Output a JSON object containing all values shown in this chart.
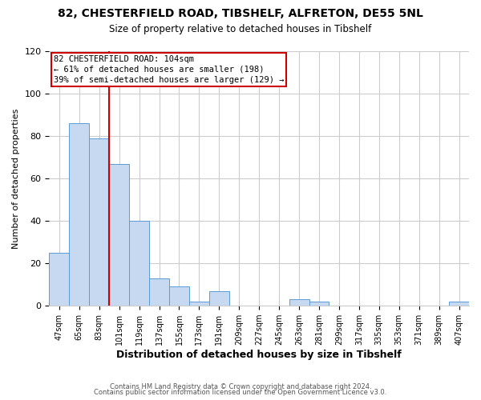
{
  "title1": "82, CHESTERFIELD ROAD, TIBSHELF, ALFRETON, DE55 5NL",
  "title2": "Size of property relative to detached houses in Tibshelf",
  "xlabel": "Distribution of detached houses by size in Tibshelf",
  "ylabel": "Number of detached properties",
  "bar_labels": [
    "47sqm",
    "65sqm",
    "83sqm",
    "101sqm",
    "119sqm",
    "137sqm",
    "155sqm",
    "173sqm",
    "191sqm",
    "209sqm",
    "227sqm",
    "245sqm",
    "263sqm",
    "281sqm",
    "299sqm",
    "317sqm",
    "335sqm",
    "353sqm",
    "371sqm",
    "389sqm",
    "407sqm"
  ],
  "bar_values": [
    25,
    86,
    79,
    67,
    40,
    13,
    9,
    2,
    7,
    0,
    0,
    0,
    3,
    2,
    0,
    0,
    0,
    0,
    0,
    0,
    2
  ],
  "bar_color": "#c6d9f1",
  "bar_edge_color": "#5b9bd5",
  "vline_color": "#cc0000",
  "annotation_line1": "82 CHESTERFIELD ROAD: 104sqm",
  "annotation_line2": "← 61% of detached houses are smaller (198)",
  "annotation_line3": "39% of semi-detached houses are larger (129) →",
  "annotation_box_edgecolor": "#cc0000",
  "annotation_box_facecolor": "#ffffff",
  "ylim": [
    0,
    120
  ],
  "yticks": [
    0,
    20,
    40,
    60,
    80,
    100,
    120
  ],
  "footer1": "Contains HM Land Registry data © Crown copyright and database right 2024.",
  "footer2": "Contains public sector information licensed under the Open Government Licence v3.0.",
  "background_color": "#ffffff",
  "grid_color": "#cccccc"
}
